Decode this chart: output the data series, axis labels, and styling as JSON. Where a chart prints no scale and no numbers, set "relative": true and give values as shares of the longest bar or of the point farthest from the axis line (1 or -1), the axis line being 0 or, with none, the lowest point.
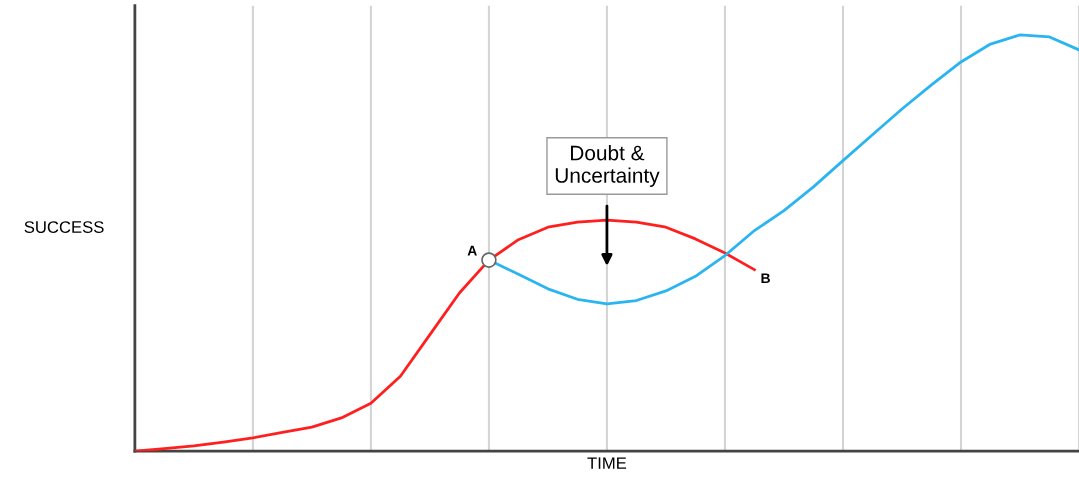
{
  "chart_data": {
    "type": "line",
    "relative": true,
    "xlabel": "TIME",
    "ylabel": "SUCCESS",
    "categories": [
      null,
      null,
      null,
      null,
      null,
      null,
      null,
      null,
      null,
      null,
      null,
      null,
      null,
      null,
      null,
      null,
      null,
      null,
      null,
      null,
      null,
      null,
      null,
      null,
      null,
      null,
      null,
      null,
      null,
      null,
      null,
      null,
      null
    ],
    "tick_labels": false,
    "grid": "x",
    "marker": "none",
    "line_style": "solid",
    "series": [
      {
        "color": "#ff1f1f",
        "values": [
          0,
          0.006,
          0.013,
          0.022,
          0.032,
          0.045,
          0.058,
          0.08,
          0.115,
          0.18,
          0.28,
          0.38,
          0.459,
          0.508,
          0.538,
          0.55,
          0.555,
          0.55,
          0.538,
          0.51,
          0.476,
          0.436,
          null,
          null,
          null,
          null,
          null,
          null,
          null,
          null,
          null,
          null,
          null
        ]
      },
      {
        "color": "#2bb5f0",
        "values": [
          null,
          null,
          null,
          null,
          null,
          null,
          null,
          null,
          null,
          null,
          null,
          null,
          0.459,
          0.425,
          0.39,
          0.365,
          0.354,
          0.362,
          0.385,
          0.42,
          0.47,
          0.53,
          0.578,
          0.635,
          0.698,
          0.76,
          0.822,
          0.88,
          0.935,
          0.978,
          1.0,
          0.995,
          0.964
        ]
      }
    ],
    "annotations": [
      "Doubt &\nUncertainty",
      "A",
      "B"
    ]
  }
}
